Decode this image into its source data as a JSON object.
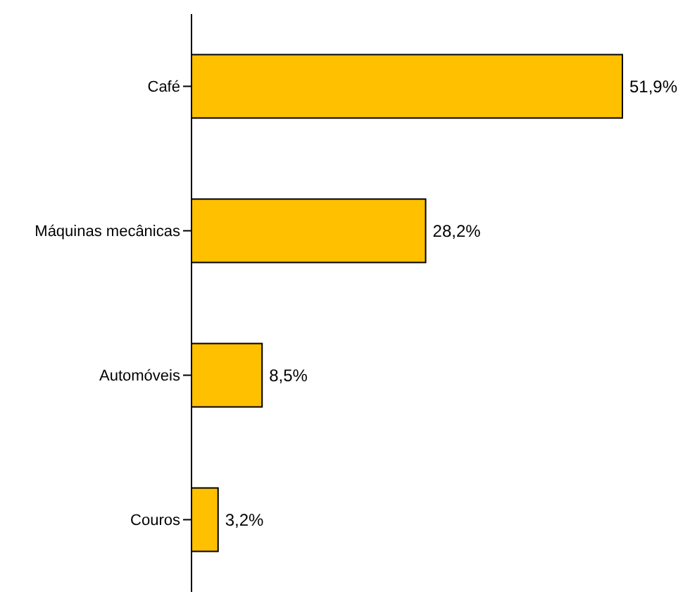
{
  "chart_data": {
    "type": "bar",
    "orientation": "horizontal",
    "categories": [
      "Café",
      "Máquinas mecânicas",
      "Automóveis",
      "Couros"
    ],
    "values": [
      51.9,
      28.2,
      8.5,
      3.2
    ],
    "value_labels": [
      "51,9%",
      "28,2%",
      "8,5%",
      "3,2%"
    ],
    "color": "#ffc000",
    "tick_labels": "y"
  }
}
